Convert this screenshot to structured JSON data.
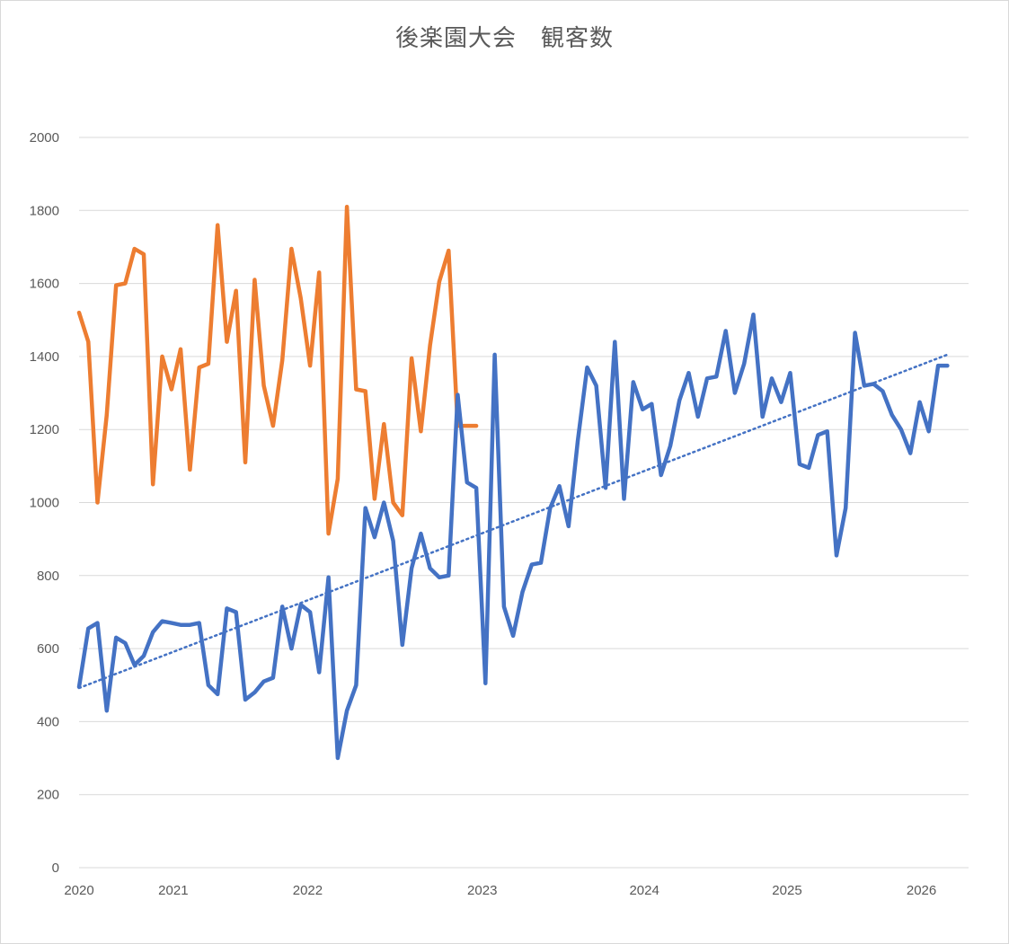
{
  "chart_data": {
    "type": "line",
    "title": "後楽園大会　観客数",
    "xlabel": "",
    "ylabel": "",
    "ylim": [
      0,
      2000
    ],
    "y_ticks": [
      0,
      200,
      400,
      600,
      800,
      1000,
      1200,
      1400,
      1600,
      1800,
      2000
    ],
    "x_range": [
      2020,
      2026.42
    ],
    "x_ticks": [
      {
        "label": "2020",
        "x": 2020
      },
      {
        "label": "2021",
        "x": 2020.68
      },
      {
        "label": "2022",
        "x": 2021.65
      },
      {
        "label": "2023",
        "x": 2022.91
      },
      {
        "label": "2024",
        "x": 2024.08
      },
      {
        "label": "2025",
        "x": 2025.11
      },
      {
        "label": "2026",
        "x": 2026.08
      }
    ],
    "grid": true,
    "legend": "none",
    "colors": {
      "blue": "#4472c4",
      "orange": "#ed7d31",
      "grid": "#d9d9d9",
      "text": "#595959"
    },
    "series": [
      {
        "name": "",
        "color": "#ed7d31",
        "x": [
          2020.0,
          2020.067,
          2020.133,
          2020.2,
          2020.267,
          2020.333,
          2020.4,
          2020.467,
          2020.533,
          2020.6,
          2020.667,
          2020.733,
          2020.8,
          2020.867,
          2020.933,
          2021.0,
          2021.067,
          2021.133,
          2021.2,
          2021.267,
          2021.333,
          2021.4,
          2021.467,
          2021.533,
          2021.6,
          2021.667,
          2021.733,
          2021.8,
          2021.867,
          2021.933,
          2022.0,
          2022.067,
          2022.133,
          2022.2,
          2022.267,
          2022.333,
          2022.4,
          2022.467,
          2022.533,
          2022.6,
          2022.667,
          2022.733,
          2022.8,
          2022.867
        ],
        "values": [
          1520,
          1440,
          1000,
          1240,
          1595,
          1600,
          1695,
          1680,
          1050,
          1400,
          1310,
          1420,
          1090,
          1370,
          1380,
          1760,
          1440,
          1580,
          1110,
          1610,
          1320,
          1210,
          1390,
          1695,
          1560,
          1375,
          1630,
          915,
          1065,
          1810,
          1310,
          1305,
          1010,
          1215,
          1000,
          965,
          1395,
          1195,
          1430,
          1605,
          1690,
          1210,
          1210,
          1210
        ]
      },
      {
        "name": "",
        "color": "#4472c4",
        "x": [
          2020.0,
          2020.067,
          2020.133,
          2020.2,
          2020.267,
          2020.333,
          2020.4,
          2020.467,
          2020.533,
          2020.6,
          2020.667,
          2020.733,
          2020.8,
          2020.867,
          2020.933,
          2021.0,
          2021.067,
          2021.133,
          2021.2,
          2021.267,
          2021.333,
          2021.4,
          2021.467,
          2021.533,
          2021.6,
          2021.667,
          2021.733,
          2021.8,
          2021.867,
          2021.933,
          2022.0,
          2022.067,
          2022.133,
          2022.2,
          2022.267,
          2022.333,
          2022.4,
          2022.467,
          2022.533,
          2022.6,
          2022.667,
          2022.733,
          2022.8,
          2022.867,
          2022.933,
          2023.0,
          2023.067,
          2023.133,
          2023.2,
          2023.267,
          2023.333,
          2023.4,
          2023.467,
          2023.533,
          2023.6,
          2023.667,
          2023.733,
          2023.8,
          2023.867,
          2023.933,
          2024.0,
          2024.067,
          2024.133,
          2024.2,
          2024.267,
          2024.333,
          2024.4,
          2024.467,
          2024.533,
          2024.6,
          2024.667,
          2024.733,
          2024.8,
          2024.867,
          2024.933,
          2025.0,
          2025.067,
          2025.133,
          2025.2,
          2025.267,
          2025.333,
          2025.4,
          2025.467,
          2025.533,
          2025.6,
          2025.667,
          2025.733,
          2025.8,
          2025.867,
          2025.933,
          2026.0,
          2026.067,
          2026.133,
          2026.2,
          2026.267
        ],
        "values": [
          495,
          655,
          670,
          430,
          630,
          615,
          555,
          580,
          645,
          675,
          670,
          665,
          665,
          670,
          500,
          475,
          710,
          700,
          460,
          480,
          510,
          520,
          715,
          600,
          720,
          700,
          535,
          795,
          300,
          430,
          500,
          985,
          905,
          1000,
          895,
          610,
          820,
          915,
          820,
          795,
          800,
          1295,
          1055,
          1040,
          505,
          1405,
          715,
          635,
          755,
          830,
          835,
          985,
          1045,
          935,
          1170,
          1370,
          1320,
          1040,
          1440,
          1010,
          1330,
          1255,
          1270,
          1075,
          1155,
          1280,
          1355,
          1235,
          1340,
          1345,
          1470,
          1300,
          1380,
          1515,
          1235,
          1340,
          1275,
          1355,
          1105,
          1095,
          1185,
          1195,
          855,
          985,
          1465,
          1320,
          1325,
          1305,
          1240,
          1200,
          1135,
          1275,
          1195,
          1375,
          1375
        ]
      }
    ],
    "trendline": {
      "series": "blue",
      "style": "dotted",
      "x": [
        2020.0,
        2026.267
      ],
      "values": [
        492,
        1405
      ]
    }
  }
}
